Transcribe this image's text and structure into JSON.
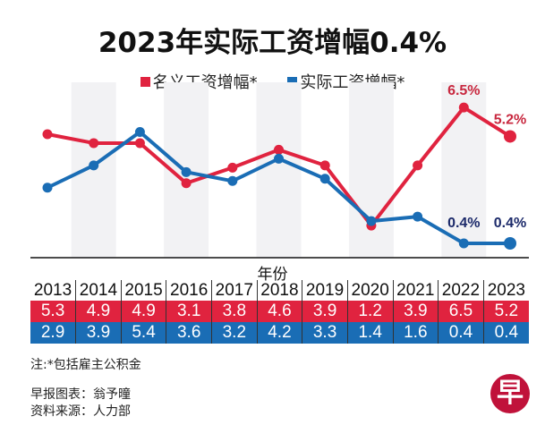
{
  "title": "2023年实际工资增幅0.4%",
  "chart_data": {
    "type": "line",
    "title": "2023年实际工资增幅0.4%",
    "xlabel": "年份",
    "categories": [
      "2013",
      "2014",
      "2015",
      "2016",
      "2017",
      "2018",
      "2019",
      "2020",
      "2021",
      "2022",
      "2023"
    ],
    "series": [
      {
        "name": "名义工资增幅*",
        "color": "#e0233f",
        "values": [
          5.3,
          4.9,
          4.9,
          3.1,
          3.8,
          4.6,
          3.9,
          1.2,
          3.9,
          6.5,
          5.2
        ]
      },
      {
        "name": "实际工资增幅*",
        "color": "#1a6db5",
        "values": [
          2.9,
          3.9,
          5.4,
          3.6,
          3.2,
          4.2,
          3.3,
          1.4,
          1.6,
          0.4,
          0.4
        ]
      }
    ],
    "annotations": [
      {
        "series": 0,
        "year": "2022",
        "text": "6.5%"
      },
      {
        "series": 0,
        "year": "2023",
        "text": "5.2%"
      },
      {
        "series": 1,
        "year": "2022",
        "text": "0.4%"
      },
      {
        "series": 1,
        "year": "2023",
        "text": "0.4%"
      }
    ],
    "grid": false,
    "legend": "top"
  },
  "note": "注:*包括雇主公积金",
  "credits": [
    "早报图表：翁予曈",
    "资料来源：人力部"
  ],
  "logo_text": "早"
}
